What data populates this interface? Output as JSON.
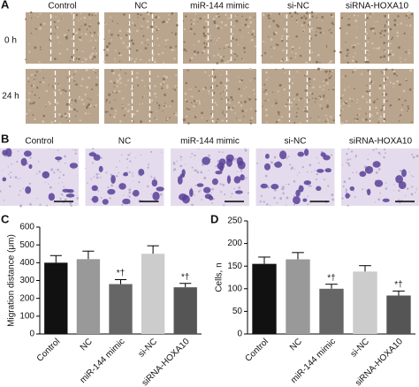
{
  "figure": {
    "panel_a": {
      "label": "A",
      "columns": [
        "Control",
        "NC",
        "miR-144 mimic",
        "si-NC",
        "siRNA-HOXA10"
      ],
      "rows": [
        "0 h",
        "24 h"
      ]
    },
    "panel_b": {
      "label": "B",
      "columns": [
        "Control",
        "NC",
        "miR-144 mimic",
        "si-NC",
        "siRNA-HOXA10"
      ]
    }
  },
  "chart_data": [
    {
      "type": "bar",
      "label": "C",
      "ylabel": "Migration distance (μm)",
      "categories": [
        "Control",
        "NC",
        "miR-144 mimic",
        "si-NC",
        "siRNA-HOXA10"
      ],
      "values": [
        400,
        420,
        280,
        450,
        262
      ],
      "errors": [
        40,
        45,
        25,
        45,
        22
      ],
      "colors": [
        "#111111",
        "#999999",
        "#666666",
        "#cccccc",
        "#555555"
      ],
      "markers": [
        null,
        null,
        "*†",
        null,
        "*†"
      ],
      "ylim": [
        0,
        600
      ],
      "yticks": [
        0,
        100,
        200,
        300,
        400,
        500,
        600
      ]
    },
    {
      "type": "bar",
      "label": "D",
      "ylabel": "Cells, n",
      "categories": [
        "Control",
        "NC",
        "miR-144 mimic",
        "si-NC",
        "siRNA-HOXA10"
      ],
      "values": [
        155,
        165,
        100,
        138,
        85
      ],
      "errors": [
        15,
        15,
        10,
        13,
        10
      ],
      "colors": [
        "#111111",
        "#999999",
        "#666666",
        "#cccccc",
        "#555555"
      ],
      "markers": [
        null,
        null,
        "*†",
        null,
        "*†"
      ],
      "ylim": [
        0,
        250
      ],
      "yticks": [
        0,
        50,
        100,
        150,
        200,
        250
      ]
    }
  ]
}
